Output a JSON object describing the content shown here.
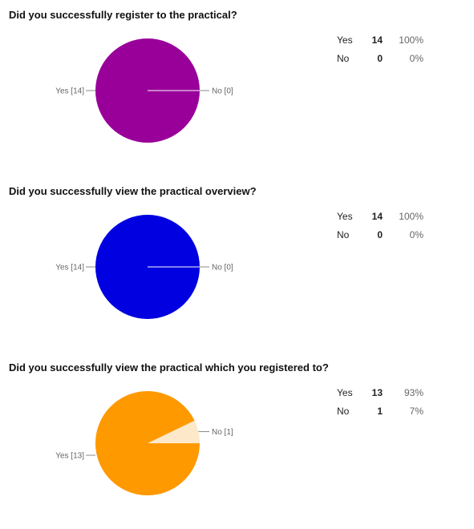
{
  "chart_data": [
    {
      "type": "pie",
      "title": "Did you successfully register to the practical?",
      "categories": [
        "Yes",
        "No"
      ],
      "values": [
        14,
        0
      ],
      "percentages": [
        "100%",
        "0%"
      ],
      "slice_labels": [
        "Yes [14]",
        "No [0]"
      ],
      "colors": [
        "#990099",
        "#ebcceb"
      ]
    },
    {
      "type": "pie",
      "title": "Did you successfully view the practical overview?",
      "categories": [
        "Yes",
        "No"
      ],
      "values": [
        14,
        0
      ],
      "percentages": [
        "100%",
        "0%"
      ],
      "slice_labels": [
        "Yes [14]",
        "No [0]"
      ],
      "colors": [
        "#0000e0",
        "#ccccf9"
      ]
    },
    {
      "type": "pie",
      "title": "Did you successfully view the practical which you registered to?",
      "categories": [
        "Yes",
        "No"
      ],
      "values": [
        13,
        1
      ],
      "percentages": [
        "93%",
        "7%"
      ],
      "slice_labels": [
        "Yes [13]",
        "No [1]"
      ],
      "colors": [
        "#ff9900",
        "#fde9c9"
      ]
    }
  ]
}
